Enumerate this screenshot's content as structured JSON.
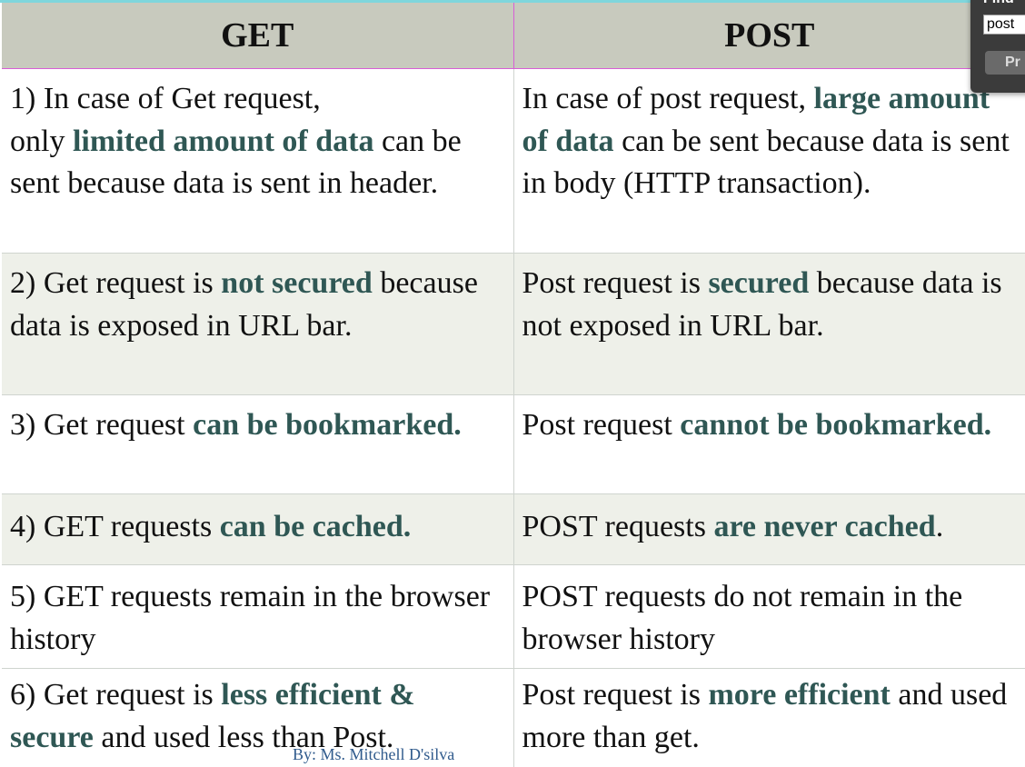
{
  "table": {
    "headers": [
      "GET",
      "POST"
    ],
    "rows": [
      {
        "get": {
          "p1": "1) In case of Get request,",
          "br": "only ",
          "b1": "limited amount of data",
          "p2": " can be sent because data is sent in header."
        },
        "post": {
          "p1": "In case of post request, ",
          "b1": "large amount of data",
          "p2": " can be sent because data is sent in body (HTTP transaction)."
        }
      },
      {
        "get": {
          "p1": "2) Get request is ",
          "b1": "not secured",
          "p2": " because data is exposed in URL bar."
        },
        "post": {
          "p1": "Post request is ",
          "b1": "secured",
          "p2": " because data is not exposed in URL bar."
        }
      },
      {
        "get": {
          "p1": "3) Get request ",
          "b1": "can be bookmarked."
        },
        "post": {
          "p1": "Post request ",
          "b1": "cannot be bookmarked."
        }
      },
      {
        "get": {
          "p1": "4) GET requests ",
          "b1": "can be cached."
        },
        "post": {
          "p1": "POST requests ",
          "b1": "are never cached",
          "p2": "."
        }
      },
      {
        "get": {
          "p1": "5) GET requests remain in the browser history"
        },
        "post": {
          "p1": "POST requests do not remain in the browser history"
        }
      },
      {
        "get": {
          "p1": "6) Get request is ",
          "b1": "less efficient & secure",
          "p2": " and used less than Post."
        },
        "post": {
          "p1": "Post request is ",
          "b1": "more efficient",
          "p2": " and used more than get."
        }
      }
    ]
  },
  "footer": {
    "credit": "By: Ms. Mitchell D'silva"
  },
  "find_box": {
    "label": "Find",
    "input_value": "post",
    "button_label": "Pr"
  }
}
